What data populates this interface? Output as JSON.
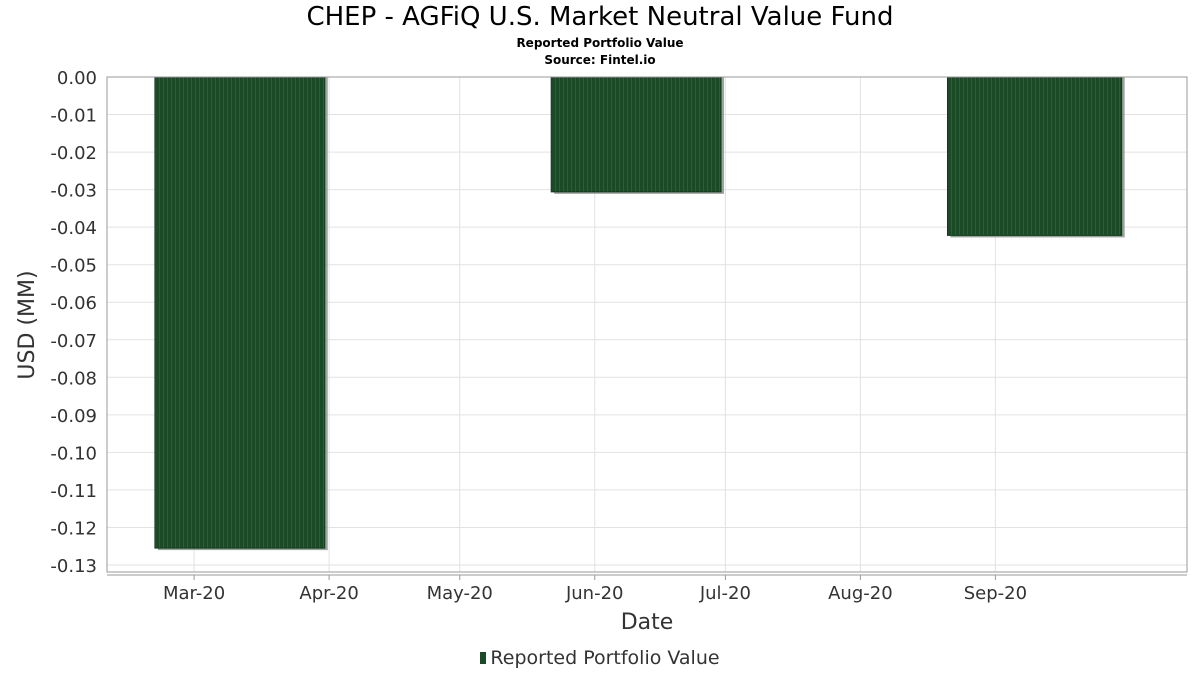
{
  "chart_data": {
    "type": "bar",
    "title": "CHEP - AGFiQ U.S. Market Neutral Value Fund",
    "subtitle": "Reported Portfolio Value",
    "source": "Source: Fintel.io",
    "xlabel": "Date",
    "ylabel": "USD (MM)",
    "x_ticks": [
      "Mar-20",
      "Apr-20",
      "May-20",
      "Jun-20",
      "Jul-20",
      "Aug-20",
      "Sep-20"
    ],
    "y_ticks": [
      "0.00",
      "-0.01",
      "-0.02",
      "-0.03",
      "-0.04",
      "-0.05",
      "-0.06",
      "-0.07",
      "-0.08",
      "-0.09",
      "-0.10",
      "-0.11",
      "-0.12",
      "-0.13"
    ],
    "ylim": [
      -0.13,
      0.0
    ],
    "xlim": [
      "2020-02-10",
      "2020-10-15"
    ],
    "grid": true,
    "legend_position": "bottom",
    "series": [
      {
        "name": "Reported Portfolio Value",
        "color": "#1a4a26",
        "bars": [
          {
            "start": "2020-02-21",
            "end": "2020-03-31",
            "value": -0.1255
          },
          {
            "start": "2020-05-22",
            "end": "2020-06-30",
            "value": -0.0306
          },
          {
            "start": "2020-08-21",
            "end": "2020-09-30",
            "value": -0.0422
          }
        ]
      }
    ]
  }
}
